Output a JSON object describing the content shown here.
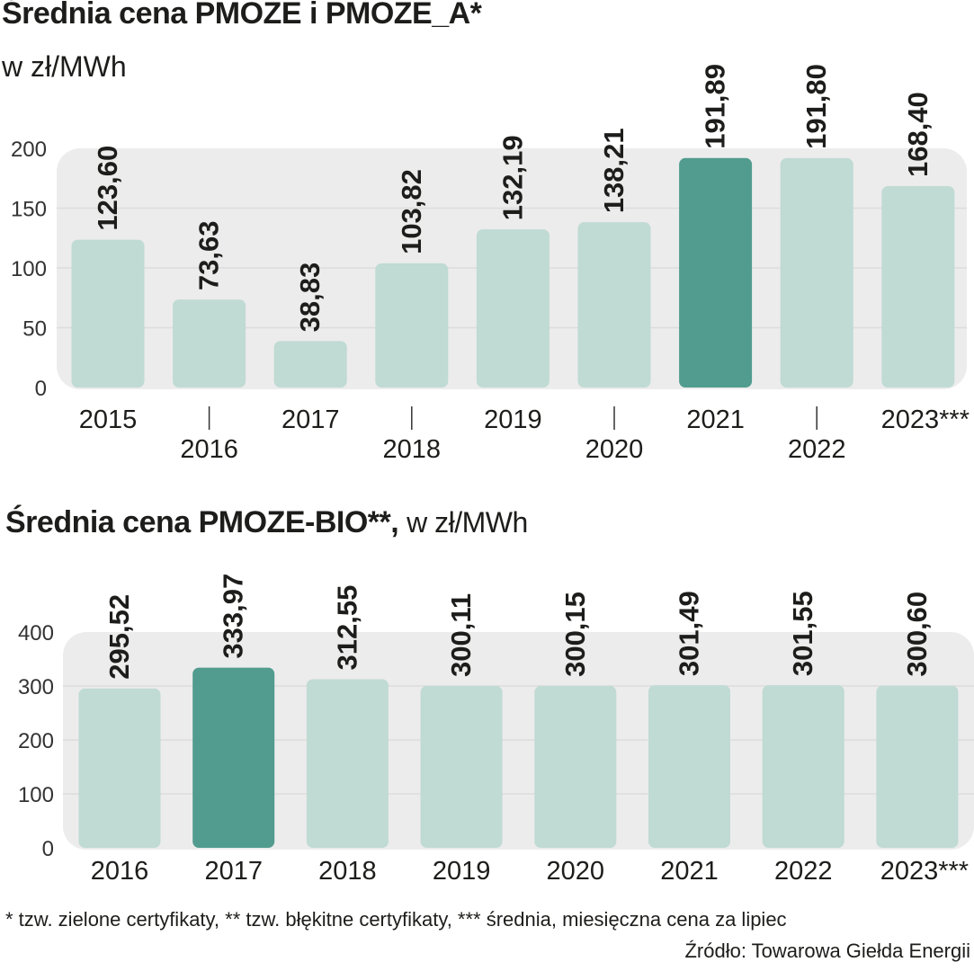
{
  "chart_data": [
    {
      "type": "bar",
      "title": "Średnia cena PMOZE i PMOZE_A*",
      "subtitle": "w zł/MWh",
      "xlabel": "",
      "ylabel": "w zł/MWh",
      "categories": [
        "2015",
        "2016",
        "2017",
        "2018",
        "2019",
        "2020",
        "2021",
        "2022",
        "2023***"
      ],
      "values": [
        123.6,
        73.63,
        38.83,
        103.82,
        132.19,
        138.21,
        191.89,
        191.8,
        168.4
      ],
      "value_labels": [
        "123,60",
        "73,63",
        "38,83",
        "103,82",
        "132,19",
        "138,21",
        "191,89",
        "191,80",
        "168,40"
      ],
      "highlight": "2021",
      "ylim": [
        0,
        200
      ],
      "yticks": [
        0,
        50,
        100,
        150,
        200
      ],
      "grid": true,
      "legend": "none",
      "colors": {
        "bar": "#c0dad4",
        "highlight": "#519c8f",
        "panel": "#ececec",
        "grid": "#dcdcdc"
      }
    },
    {
      "type": "bar",
      "title": "Średnia cena PMOZE-BIO**,",
      "subtitle": "w zł/MWh",
      "xlabel": "",
      "ylabel": "w zł/MWh",
      "categories": [
        "2016",
        "2017",
        "2018",
        "2019",
        "2020",
        "2021",
        "2022",
        "2023***"
      ],
      "values": [
        295.52,
        333.97,
        312.55,
        300.11,
        300.15,
        301.49,
        301.55,
        300.6
      ],
      "value_labels": [
        "295,52",
        "333,97",
        "312,55",
        "300,11",
        "300,15",
        "301,49",
        "301,55",
        "300,60"
      ],
      "highlight": "2017",
      "ylim": [
        0,
        400
      ],
      "yticks": [
        0,
        100,
        200,
        300,
        400
      ],
      "grid": true,
      "legend": "none",
      "colors": {
        "bar": "#c0dad4",
        "highlight": "#519c8f",
        "panel": "#ececec",
        "grid": "#dcdcdc"
      }
    }
  ],
  "footnote": "* tzw. zielone certyfikaty, ** tzw. błękitne certyfikaty, *** średnia, miesięczna cena za lipiec",
  "source": "Źródło: Towarowa Giełda Energii"
}
